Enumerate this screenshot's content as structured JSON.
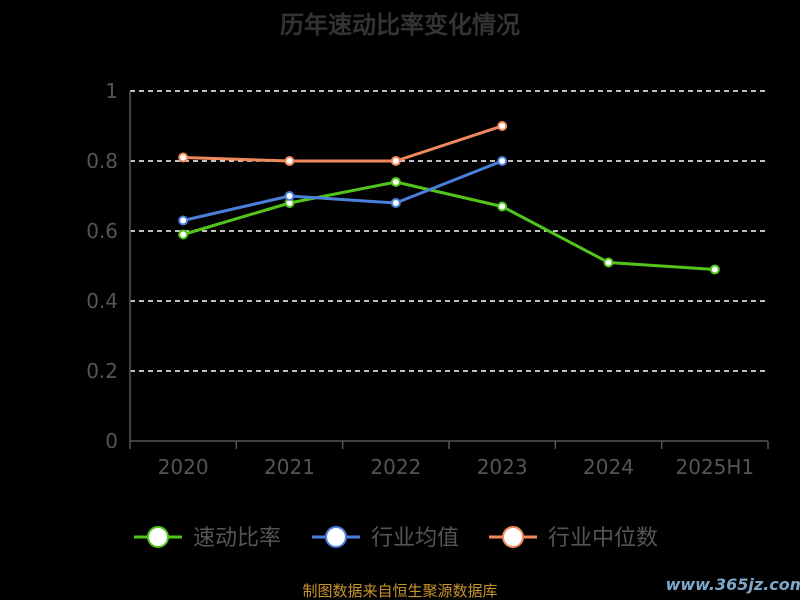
{
  "chart_data": {
    "type": "line",
    "title": "历年速动比率变化情况",
    "categories": [
      "2020",
      "2021",
      "2022",
      "2023",
      "2024",
      "2025H1"
    ],
    "ylim": [
      0,
      1
    ],
    "yticks": [
      "0",
      "0.2",
      "0.4",
      "0.6",
      "0.8",
      "1"
    ],
    "grid": true,
    "legend_position": "bottom",
    "series": [
      {
        "name": "速动比率",
        "color": "#52c41a",
        "values": [
          0.59,
          0.68,
          0.74,
          0.67,
          0.51,
          0.49
        ]
      },
      {
        "name": "行业均值",
        "color": "#4a7fdc",
        "values": [
          0.63,
          0.7,
          0.68,
          0.8,
          null,
          null
        ]
      },
      {
        "name": "行业中位数",
        "color": "#f08a5d",
        "values": [
          0.81,
          0.8,
          0.8,
          0.9,
          null,
          null
        ]
      }
    ]
  },
  "footer": {
    "source": "制图数据来自恒生聚源数据库",
    "watermark": "www.365jz.com"
  }
}
